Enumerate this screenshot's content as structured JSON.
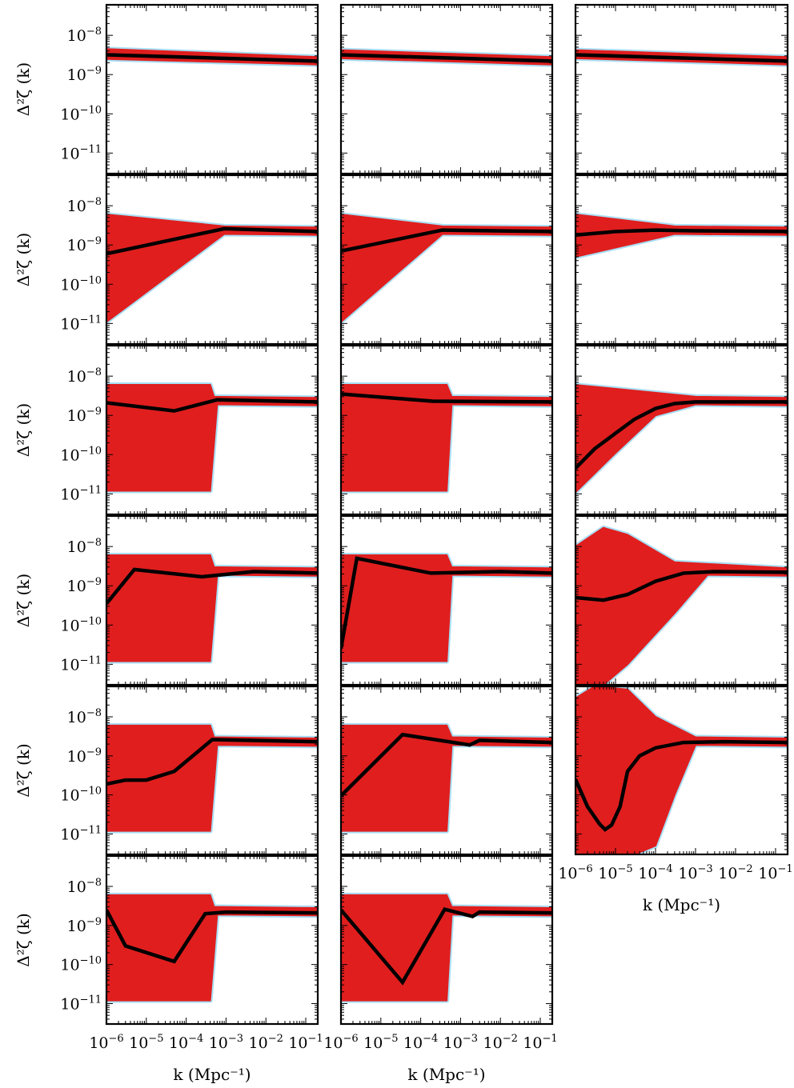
{
  "figure": {
    "ylabel": "Δ²ζ (k)",
    "xlabel": "k (Mpc⁻¹)"
  },
  "colors": {
    "band": "#e01e1e",
    "band_alt": "#a9dff5",
    "mean": "#000000",
    "frame": "#000000",
    "background": "#ffffff"
  },
  "axes_common": {
    "x_scale": "log",
    "y_scale": "log",
    "xlim": [
      1e-06,
      0.2
    ],
    "ylim": [
      3e-12,
      6e-08
    ],
    "x_tick_labels": [
      "10-6",
      "10-5",
      "10-4",
      "10-3",
      "10-2",
      "10-1"
    ],
    "y_tick_labels": [
      "10-8",
      "10-9",
      "10-10",
      "10-11"
    ]
  },
  "chart_data": [
    {
      "type": "line",
      "row": 0,
      "col": 0,
      "x": [
        1e-06,
        0.2
      ],
      "y": [
        3.2e-09,
        2.2e-09
      ],
      "band_upper": [
        [
          1e-06,
          4.5e-09
        ],
        [
          0.2,
          2.8e-09
        ]
      ],
      "band_lower": [
        [
          1e-06,
          2.5e-09
        ],
        [
          0.2,
          1.8e-09
        ]
      ]
    },
    {
      "type": "line",
      "row": 0,
      "col": 1,
      "x": [
        1e-06,
        0.2
      ],
      "y": [
        3.2e-09,
        2.2e-09
      ],
      "band_upper": [
        [
          1e-06,
          4.2e-09
        ],
        [
          0.2,
          2.8e-09
        ]
      ],
      "band_lower": [
        [
          1e-06,
          2.6e-09
        ],
        [
          0.2,
          1.8e-09
        ]
      ]
    },
    {
      "type": "line",
      "row": 0,
      "col": 2,
      "x": [
        1e-06,
        0.2
      ],
      "y": [
        3.2e-09,
        2.2e-09
      ],
      "band_upper": [
        [
          1e-06,
          4.2e-09
        ],
        [
          0.2,
          2.8e-09
        ]
      ],
      "band_lower": [
        [
          1e-06,
          2.6e-09
        ],
        [
          0.2,
          1.8e-09
        ]
      ]
    },
    {
      "type": "line",
      "row": 1,
      "col": 0,
      "x": [
        1e-06,
        0.0009,
        0.2
      ],
      "y": [
        6e-10,
        2.6e-09,
        2.2e-09
      ],
      "band_upper": [
        [
          1e-06,
          6e-09
        ],
        [
          0.0009,
          3e-09
        ],
        [
          0.2,
          2.8e-09
        ]
      ],
      "band_lower": [
        [
          1e-06,
          1.1e-11
        ],
        [
          0.0009,
          1.9e-09
        ],
        [
          0.2,
          1.8e-09
        ]
      ]
    },
    {
      "type": "line",
      "row": 1,
      "col": 1,
      "x": [
        1e-06,
        0.00035,
        0.2
      ],
      "y": [
        7e-10,
        2.4e-09,
        2.2e-09
      ],
      "band_upper": [
        [
          1e-06,
          6e-09
        ],
        [
          0.00035,
          3e-09
        ],
        [
          0.2,
          2.8e-09
        ]
      ],
      "band_lower": [
        [
          1e-06,
          1.1e-11
        ],
        [
          0.00035,
          1.9e-09
        ],
        [
          0.2,
          1.8e-09
        ]
      ]
    },
    {
      "type": "line",
      "row": 1,
      "col": 2,
      "x": [
        1e-06,
        1e-05,
        0.0001,
        0.001,
        0.2
      ],
      "y": [
        1.8e-09,
        2.2e-09,
        2.4e-09,
        2.3e-09,
        2.2e-09
      ],
      "band_upper": [
        [
          1e-06,
          6e-09
        ],
        [
          0.0003,
          3e-09
        ],
        [
          0.2,
          2.8e-09
        ]
      ],
      "band_lower": [
        [
          1e-06,
          5e-10
        ],
        [
          0.0003,
          1.9e-09
        ],
        [
          0.2,
          1.8e-09
        ]
      ]
    },
    {
      "type": "line",
      "row": 2,
      "col": 0,
      "x": [
        1e-06,
        5e-05,
        0.0006,
        0.2
      ],
      "y": [
        2.1e-09,
        1.3e-09,
        2.5e-09,
        2.2e-09
      ],
      "band_upper": [
        [
          1e-06,
          6e-09
        ],
        [
          0.0004,
          6e-09
        ],
        [
          0.0005,
          3e-09
        ],
        [
          0.2,
          2.8e-09
        ]
      ],
      "band_lower": [
        [
          1e-06,
          1.2e-11
        ],
        [
          0.0004,
          1.2e-11
        ],
        [
          0.0006,
          1.9e-09
        ],
        [
          0.2,
          1.8e-09
        ]
      ]
    },
    {
      "type": "line",
      "row": 2,
      "col": 1,
      "x": [
        1e-06,
        0.0002,
        0.2
      ],
      "y": [
        3.5e-09,
        2.3e-09,
        2.2e-09
      ],
      "band_upper": [
        [
          1e-06,
          6e-09
        ],
        [
          0.00045,
          6e-09
        ],
        [
          0.0006,
          3e-09
        ],
        [
          0.2,
          2.8e-09
        ]
      ],
      "band_lower": [
        [
          1e-06,
          1.2e-11
        ],
        [
          0.00045,
          1.2e-11
        ],
        [
          0.0006,
          1.9e-09
        ],
        [
          0.2,
          1.8e-09
        ]
      ]
    },
    {
      "type": "line",
      "row": 2,
      "col": 2,
      "x": [
        1e-06,
        3e-06,
        1e-05,
        3e-05,
        0.0001,
        0.0003,
        0.001,
        0.01,
        0.2
      ],
      "y": [
        4.5e-11,
        1.4e-10,
        3.5e-10,
        8e-10,
        1.5e-09,
        2e-09,
        2.2e-09,
        2.2e-09,
        2.2e-09
      ],
      "band_upper": [
        [
          1e-06,
          6e-09
        ],
        [
          0.001,
          3e-09
        ],
        [
          0.2,
          2.8e-09
        ]
      ],
      "band_lower": [
        [
          1e-06,
          1.1e-11
        ],
        [
          1e-05,
          1.1e-10
        ],
        [
          0.0001,
          1e-09
        ],
        [
          0.001,
          1.9e-09
        ],
        [
          0.2,
          1.8e-09
        ]
      ]
    },
    {
      "type": "line",
      "row": 3,
      "col": 0,
      "x": [
        1e-06,
        5e-06,
        0.00025,
        0.005,
        0.2
      ],
      "y": [
        3.5e-10,
        2.6e-09,
        1.7e-09,
        2.3e-09,
        2.1e-09
      ],
      "band_upper": [
        [
          1e-06,
          6e-09
        ],
        [
          0.0004,
          6e-09
        ],
        [
          0.0005,
          3e-09
        ],
        [
          0.2,
          2.8e-09
        ]
      ],
      "band_lower": [
        [
          1e-06,
          1.2e-11
        ],
        [
          0.0004,
          1.2e-11
        ],
        [
          0.0006,
          1.9e-09
        ],
        [
          0.2,
          1.8e-09
        ]
      ]
    },
    {
      "type": "line",
      "row": 3,
      "col": 1,
      "x": [
        1e-06,
        2.5e-06,
        0.00018,
        0.01,
        0.2
      ],
      "y": [
        2.5e-11,
        5e-09,
        2.1e-09,
        2.3e-09,
        2.1e-09
      ],
      "band_upper": [
        [
          1e-06,
          6e-09
        ],
        [
          0.00045,
          6e-09
        ],
        [
          0.0006,
          3e-09
        ],
        [
          0.2,
          2.8e-09
        ]
      ],
      "band_lower": [
        [
          1e-06,
          1.2e-11
        ],
        [
          0.00045,
          1.2e-11
        ],
        [
          0.0006,
          1.9e-09
        ],
        [
          0.2,
          1.8e-09
        ]
      ]
    },
    {
      "type": "line",
      "row": 3,
      "col": 2,
      "x": [
        1e-06,
        5e-06,
        2e-05,
        0.0001,
        0.0005,
        0.003,
        0.2
      ],
      "y": [
        5e-10,
        4.3e-10,
        6e-10,
        1.3e-09,
        2.1e-09,
        2.3e-09,
        2.2e-09
      ],
      "band_upper": [
        [
          1e-06,
          1e-08
        ],
        [
          5e-06,
          3e-08
        ],
        [
          2e-05,
          2e-08
        ],
        [
          0.0003,
          4e-09
        ],
        [
          0.2,
          2.8e-09
        ]
      ],
      "band_lower": [
        [
          1e-06,
          3e-12
        ],
        [
          5e-06,
          3e-12
        ],
        [
          2e-05,
          1e-11
        ],
        [
          0.0003,
          2e-10
        ],
        [
          0.002,
          1.9e-09
        ],
        [
          0.2,
          1.8e-09
        ]
      ]
    },
    {
      "type": "line",
      "row": 4,
      "col": 0,
      "x": [
        1e-06,
        3e-06,
        1e-05,
        5e-05,
        0.00045,
        0.2
      ],
      "y": [
        1.9e-10,
        2.4e-10,
        2.4e-10,
        4e-10,
        2.6e-09,
        2.3e-09
      ],
      "band_upper": [
        [
          1e-06,
          6e-09
        ],
        [
          0.0004,
          6e-09
        ],
        [
          0.0005,
          3e-09
        ],
        [
          0.2,
          2.8e-09
        ]
      ],
      "band_lower": [
        [
          1e-06,
          1.2e-11
        ],
        [
          0.0004,
          1.2e-11
        ],
        [
          0.0006,
          1.9e-09
        ],
        [
          0.2,
          1.8e-09
        ]
      ]
    },
    {
      "type": "line",
      "row": 4,
      "col": 1,
      "x": [
        1e-06,
        3.5e-05,
        0.0017,
        0.003,
        0.2
      ],
      "y": [
        9.5e-11,
        3.5e-09,
        1.9e-09,
        2.5e-09,
        2.2e-09
      ],
      "band_upper": [
        [
          1e-06,
          6e-09
        ],
        [
          0.00045,
          6e-09
        ],
        [
          0.0006,
          3e-09
        ],
        [
          0.2,
          2.8e-09
        ]
      ],
      "band_lower": [
        [
          1e-06,
          1.2e-11
        ],
        [
          0.00045,
          1.2e-11
        ],
        [
          0.0006,
          1.9e-09
        ],
        [
          0.2,
          1.8e-09
        ]
      ]
    },
    {
      "type": "line",
      "row": 4,
      "col": 2,
      "x": [
        1e-06,
        2e-06,
        4e-06,
        5.5e-06,
        8e-06,
        1.3e-05,
        2e-05,
        4e-05,
        0.0001,
        0.0005,
        0.005,
        0.2
      ],
      "y": [
        2.5e-10,
        5e-11,
        1.8e-11,
        1.3e-11,
        1.7e-11,
        5e-11,
        4e-10,
        1e-09,
        1.6e-09,
        2.2e-09,
        2.3e-09,
        2.2e-09
      ],
      "band_upper": [
        [
          1e-06,
          3e-08
        ],
        [
          3e-06,
          6e-08
        ],
        [
          2e-05,
          5e-08
        ],
        [
          0.0001,
          1e-08
        ],
        [
          0.001,
          3e-09
        ],
        [
          0.2,
          2.8e-09
        ]
      ],
      "band_lower": [
        [
          1e-06,
          3e-12
        ],
        [
          3e-05,
          3e-12
        ],
        [
          0.0001,
          5e-12
        ],
        [
          0.0003,
          1e-10
        ],
        [
          0.001,
          1.9e-09
        ],
        [
          0.2,
          1.8e-09
        ]
      ]
    },
    {
      "type": "line",
      "row": 5,
      "col": 0,
      "x": [
        1e-06,
        3e-06,
        5e-05,
        0.0003,
        0.001,
        0.2
      ],
      "y": [
        2.5e-09,
        3e-10,
        1.2e-10,
        2e-09,
        2.2e-09,
        2.1e-09
      ],
      "band_upper": [
        [
          1e-06,
          6e-09
        ],
        [
          0.0004,
          6e-09
        ],
        [
          0.0005,
          3e-09
        ],
        [
          0.2,
          2.8e-09
        ]
      ],
      "band_lower": [
        [
          1e-06,
          1.2e-11
        ],
        [
          0.0004,
          1.2e-11
        ],
        [
          0.0006,
          1.9e-09
        ],
        [
          0.2,
          1.8e-09
        ]
      ]
    },
    {
      "type": "line",
      "row": 5,
      "col": 1,
      "x": [
        1e-06,
        3.5e-05,
        0.0004,
        0.002,
        0.003,
        0.2
      ],
      "y": [
        2.5e-09,
        3.5e-11,
        2.6e-09,
        1.7e-09,
        2.2e-09,
        2.1e-09
      ],
      "band_upper": [
        [
          1e-06,
          6e-09
        ],
        [
          0.00045,
          6e-09
        ],
        [
          0.0006,
          3e-09
        ],
        [
          0.2,
          2.8e-09
        ]
      ],
      "band_lower": [
        [
          1e-06,
          1.2e-11
        ],
        [
          0.00045,
          1.2e-11
        ],
        [
          0.0006,
          1.9e-09
        ],
        [
          0.2,
          1.8e-09
        ]
      ]
    }
  ]
}
